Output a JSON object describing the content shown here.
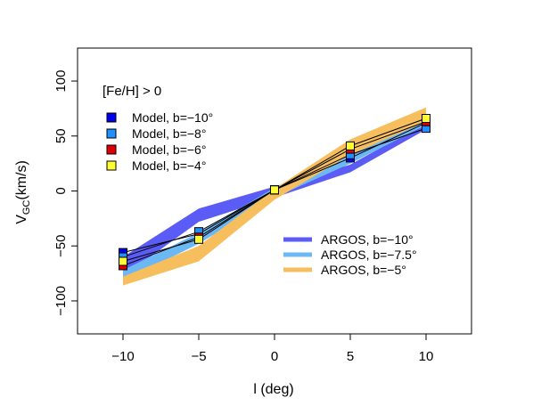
{
  "chart_data": {
    "type": "line",
    "xlabel": "l (deg)",
    "ylabel_main": "V",
    "ylabel_sub": "GC",
    "ylabel_unit": "(km/s)",
    "xlim": [
      -13,
      13
    ],
    "ylim": [
      -130,
      130
    ],
    "xticks": [
      -10,
      -5,
      0,
      5,
      10
    ],
    "yticks": [
      -100,
      -50,
      0,
      50,
      100
    ],
    "xtick_labels": [
      "−10",
      "−5",
      "0",
      "5",
      "10"
    ],
    "ytick_labels": [
      "−100",
      "−50",
      "0",
      "50",
      "100"
    ],
    "annotation": "[Fe/H] > 0",
    "x": [
      -10,
      -5,
      0,
      5,
      10
    ],
    "bands": [
      {
        "name": "ARGOS, b=−10°",
        "color": "#5B5BF5",
        "lower": [
          -78,
          -28,
          -6,
          17,
          56
        ],
        "upper": [
          -60,
          -16,
          4,
          24,
          62
        ]
      },
      {
        "name": "ARGOS, b=−7.5°",
        "color": "#6BB8F5",
        "lower": [
          -82,
          -48,
          -6,
          25,
          60
        ],
        "upper": [
          -72,
          -38,
          3,
          34,
          68
        ]
      },
      {
        "name": "ARGOS, b=−5°",
        "color": "#F7BE5E",
        "lower": [
          -86,
          -64,
          -8,
          33,
          63
        ],
        "upper": [
          -78,
          -50,
          2,
          47,
          76
        ]
      }
    ],
    "series": [
      {
        "name": "Model, b=−10°",
        "color": "#0000EE",
        "values": [
          -56,
          -39,
          1,
          30,
          62
        ]
      },
      {
        "name": "Model, b=−8°",
        "color": "#1E90FF",
        "values": [
          -60,
          -37,
          1,
          33,
          57
        ]
      },
      {
        "name": "Model, b=−6°",
        "color": "#DD0000",
        "values": [
          -68,
          -42,
          1,
          38,
          63
        ]
      },
      {
        "name": "Model, b=−4°",
        "color": "#FFFF33",
        "values": [
          -64,
          -44,
          1,
          41,
          66
        ]
      }
    ]
  }
}
